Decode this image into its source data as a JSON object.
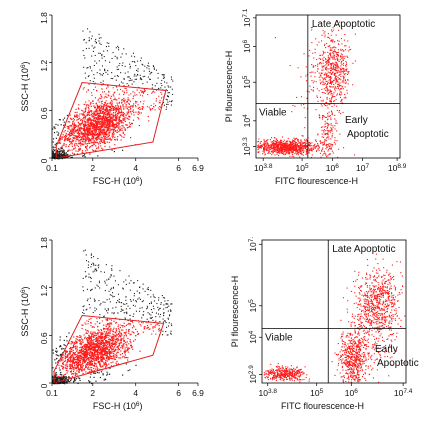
{
  "chart_data": [
    {
      "type": "scatter",
      "panel": "top-left",
      "xlabel": "FSC-H (10^6)",
      "ylabel": "SSC-H (10^6)",
      "xlim": [
        0.1,
        6.9
      ],
      "ylim": [
        0,
        1.8
      ],
      "x_ticks": [
        "0.1",
        "2",
        "4",
        "6",
        "6.9"
      ],
      "y_ticks": [
        "0",
        "0.6",
        "1.2",
        "1.8"
      ],
      "gate_polygon": [
        [
          0.3,
          0.0
        ],
        [
          4.8,
          0.2
        ],
        [
          5.4,
          0.85
        ],
        [
          1.5,
          0.95
        ],
        [
          0.3,
          0.15
        ]
      ],
      "gate_color": "#e02020",
      "points_in_gate_color": "#ff1a1a",
      "points_outside_color": "#222222",
      "cluster_center": [
        2.2,
        0.42
      ]
    },
    {
      "type": "scatter",
      "panel": "top-right",
      "xlabel": "FITC flourescence-H",
      "ylabel": "PI flourescence-H",
      "x_scale": "log",
      "y_scale": "log",
      "x_ticks": [
        "10^3.8",
        "10^5",
        "10^6",
        "10^7",
        "10^8.9"
      ],
      "y_ticks": [
        "10^3.3",
        "10^4",
        "10^5",
        "10^6",
        "10^7.1"
      ],
      "quadrant_labels": [
        "Late Apoptotic",
        "Viable",
        "Early Apoptotic"
      ],
      "points_color": "#ff1a1a"
    },
    {
      "type": "scatter",
      "panel": "bottom-left",
      "xlabel": "FSC-H (10^6)",
      "ylabel": "SSC-H (10^6)",
      "xlim": [
        0.1,
        6.9
      ],
      "ylim": [
        0,
        1.8
      ],
      "x_ticks": [
        "0.1",
        "2",
        "4",
        "6",
        "6.9"
      ],
      "y_ticks": [
        "0",
        "0.6",
        "1.2",
        "1.8"
      ],
      "gate_polygon": [
        [
          0.2,
          0.0
        ],
        [
          4.8,
          0.35
        ],
        [
          5.3,
          0.75
        ],
        [
          1.5,
          0.85
        ],
        [
          0.2,
          0.15
        ]
      ],
      "gate_color": "#e02020",
      "points_in_gate_color": "#ff1a1a",
      "points_outside_color": "#222222",
      "cluster_center": [
        2.0,
        0.4
      ]
    },
    {
      "type": "scatter",
      "panel": "bottom-right",
      "xlabel": "FITC flourescence-H",
      "ylabel": "PI flourescence-H",
      "x_scale": "log",
      "y_scale": "log",
      "x_ticks": [
        "10^3.8",
        "10^5",
        "10^6",
        "10^7.4"
      ],
      "y_ticks": [
        "10^2.9",
        "10^4",
        "10^5",
        "10^7."
      ],
      "quadrant_labels": [
        "Late Apoptotic",
        "Viable",
        "Early Apoptotic"
      ],
      "points_color": "#ff1a1a"
    }
  ]
}
